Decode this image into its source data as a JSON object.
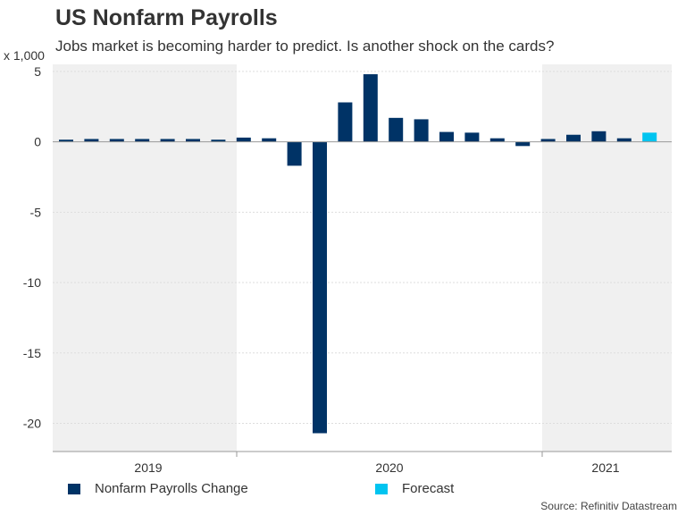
{
  "chart_data": {
    "type": "bar",
    "title": "US Nonfarm Payrolls",
    "subtitle": "Jobs market is becoming harder to predict. Is another shock on the cards?",
    "yunit": "x 1,000",
    "ylim": [
      -22,
      5.5
    ],
    "yticks": [
      5,
      0,
      -5,
      -10,
      -15,
      -20
    ],
    "ytick_labels": [
      "5",
      "0",
      "-5",
      "-10",
      "-15",
      "-20"
    ],
    "year_labels": [
      "2019",
      "2020",
      "2021"
    ],
    "series": [
      {
        "name": "Nonfarm Payrolls Change",
        "color": "#003366",
        "values": [
          0.15,
          0.2,
          0.2,
          0.2,
          0.2,
          0.2,
          0.15,
          0.3,
          0.25,
          -1.7,
          -20.7,
          2.8,
          4.8,
          1.7,
          1.6,
          0.7,
          0.65,
          0.25,
          -0.3,
          0.2,
          0.5,
          0.75,
          0.25
        ]
      },
      {
        "name": "Forecast",
        "color": "#00c4f0",
        "values": [
          null,
          null,
          null,
          null,
          null,
          null,
          null,
          null,
          null,
          null,
          null,
          null,
          null,
          null,
          null,
          null,
          null,
          null,
          null,
          null,
          null,
          null,
          null,
          0.65
        ]
      }
    ],
    "source": "Source: Refinitiv Datastream"
  }
}
